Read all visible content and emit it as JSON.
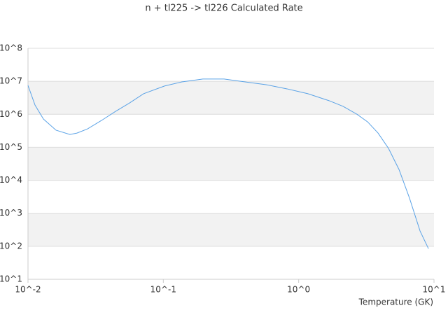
{
  "chart_data": {
    "type": "line",
    "title": "n + tl225 -> tl226 Calculated Rate",
    "x_label": "Temperature (GK)",
    "log_x": true,
    "log_y": true,
    "grid": true,
    "x": [
      0.01,
      0.01127,
      0.013,
      0.0161,
      0.0204,
      0.023,
      0.0275,
      0.0349,
      0.0444,
      0.0562,
      0.0714,
      0.102,
      0.137,
      0.196,
      0.281,
      0.402,
      0.574,
      0.82,
      1.17,
      1.67,
      2.13,
      2.7,
      3.23,
      3.86,
      4.61,
      5.52,
      6.59,
      7.89,
      9.1
    ],
    "series": [
      {
        "name": "n + tl225 -> tl226",
        "color": "#5aa2e6",
        "values": [
          7500000,
          1900000,
          720000,
          330000,
          245000,
          270000,
          360000,
          650000,
          1230000,
          2200000,
          4200000,
          7200000,
          9600000,
          11700000,
          11700000,
          9600000,
          7900000,
          5900000,
          4200000,
          2600000,
          1740000,
          1000000,
          590000,
          270000,
          93000,
          21000,
          2900,
          290,
          85
        ]
      }
    ],
    "xlim": [
      0.01,
      10
    ],
    "ylim": [
      10,
      100000000
    ],
    "xticks": [
      {
        "value": 0.01,
        "label": "10^-2"
      },
      {
        "value": 0.1,
        "label": "10^-1"
      },
      {
        "value": 1,
        "label": "10^0"
      },
      {
        "value": 10,
        "label": "10^1"
      }
    ],
    "yticks": [
      {
        "value": 10,
        "label": "10^1"
      },
      {
        "value": 100,
        "label": "10^2"
      },
      {
        "value": 1000,
        "label": "10^3"
      },
      {
        "value": 10000,
        "label": "10^4"
      },
      {
        "value": 100000,
        "label": "10^5"
      },
      {
        "value": 1000000,
        "label": "10^6"
      },
      {
        "value": 10000000,
        "label": "10^7"
      },
      {
        "value": 100000000,
        "label": "10^8"
      }
    ]
  }
}
